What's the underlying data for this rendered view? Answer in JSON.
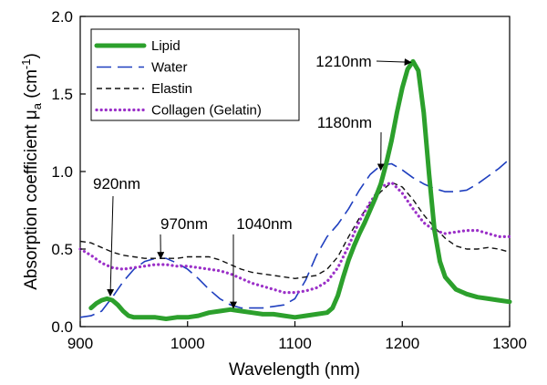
{
  "chart_data": {
    "type": "line",
    "xlabel": "Wavelength (nm)",
    "ylabel_prefix": "Absorption coefficient μ",
    "ylabel_sub": "a",
    "ylabel_suffix": " (cm",
    "ylabel_sup": "-1",
    "ylabel_close": ")",
    "xlim": [
      900,
      1300
    ],
    "ylim": [
      0,
      2.0
    ],
    "xticks": [
      900,
      1000,
      1100,
      1200,
      1300
    ],
    "xtick_labels": [
      "900",
      "1000",
      "1100",
      "1200",
      "1300"
    ],
    "yticks": [
      0,
      0.5,
      1.0,
      1.5,
      2.0
    ],
    "ytick_labels": [
      "0.0",
      "0.5",
      "1.0",
      "1.5",
      "2.0"
    ],
    "grid": false,
    "legend_position": "top-left",
    "series": [
      {
        "name": "Lipid",
        "color": "#2ca02c",
        "style": "solid-thick",
        "x": [
          910,
          915,
          920,
          925,
          930,
          935,
          940,
          945,
          950,
          960,
          970,
          980,
          990,
          1000,
          1010,
          1020,
          1030,
          1040,
          1050,
          1060,
          1070,
          1080,
          1090,
          1100,
          1110,
          1120,
          1130,
          1135,
          1140,
          1145,
          1150,
          1155,
          1160,
          1165,
          1170,
          1175,
          1180,
          1185,
          1190,
          1195,
          1200,
          1205,
          1210,
          1215,
          1220,
          1225,
          1230,
          1235,
          1240,
          1250,
          1260,
          1270,
          1280,
          1290,
          1300
        ],
        "y": [
          0.12,
          0.15,
          0.17,
          0.18,
          0.17,
          0.14,
          0.1,
          0.07,
          0.06,
          0.06,
          0.06,
          0.05,
          0.06,
          0.06,
          0.07,
          0.09,
          0.1,
          0.11,
          0.1,
          0.09,
          0.08,
          0.08,
          0.07,
          0.06,
          0.07,
          0.08,
          0.09,
          0.12,
          0.2,
          0.32,
          0.43,
          0.52,
          0.6,
          0.67,
          0.75,
          0.83,
          0.92,
          1.05,
          1.2,
          1.38,
          1.54,
          1.66,
          1.71,
          1.65,
          1.38,
          0.98,
          0.62,
          0.42,
          0.32,
          0.24,
          0.21,
          0.19,
          0.18,
          0.17,
          0.16
        ]
      },
      {
        "name": "Water",
        "color": "#1f3fbf",
        "style": "long-dash",
        "x": [
          900,
          910,
          920,
          930,
          940,
          950,
          960,
          970,
          980,
          990,
          1000,
          1010,
          1020,
          1030,
          1040,
          1050,
          1060,
          1070,
          1080,
          1090,
          1100,
          1110,
          1120,
          1130,
          1140,
          1150,
          1160,
          1170,
          1180,
          1190,
          1200,
          1210,
          1220,
          1230,
          1240,
          1250,
          1260,
          1270,
          1280,
          1290,
          1300
        ],
        "y": [
          0.06,
          0.07,
          0.1,
          0.19,
          0.29,
          0.37,
          0.42,
          0.44,
          0.44,
          0.41,
          0.37,
          0.31,
          0.24,
          0.18,
          0.14,
          0.12,
          0.12,
          0.12,
          0.13,
          0.14,
          0.18,
          0.3,
          0.46,
          0.58,
          0.66,
          0.76,
          0.88,
          0.98,
          1.04,
          1.05,
          1.01,
          0.96,
          0.92,
          0.89,
          0.87,
          0.87,
          0.88,
          0.92,
          0.97,
          1.02,
          1.08
        ]
      },
      {
        "name": "Elastin",
        "color": "#111111",
        "style": "short-dash",
        "x": [
          900,
          910,
          920,
          930,
          940,
          950,
          960,
          970,
          980,
          990,
          1000,
          1010,
          1020,
          1030,
          1040,
          1050,
          1060,
          1070,
          1080,
          1090,
          1100,
          1110,
          1120,
          1130,
          1140,
          1150,
          1160,
          1170,
          1180,
          1190,
          1200,
          1210,
          1220,
          1230,
          1240,
          1250,
          1260,
          1270,
          1280,
          1290,
          1300
        ],
        "y": [
          0.55,
          0.54,
          0.51,
          0.48,
          0.46,
          0.45,
          0.44,
          0.44,
          0.44,
          0.44,
          0.45,
          0.45,
          0.45,
          0.43,
          0.4,
          0.37,
          0.35,
          0.34,
          0.33,
          0.32,
          0.31,
          0.32,
          0.33,
          0.37,
          0.45,
          0.58,
          0.7,
          0.79,
          0.87,
          0.93,
          0.9,
          0.82,
          0.72,
          0.64,
          0.57,
          0.52,
          0.5,
          0.5,
          0.51,
          0.5,
          0.48
        ]
      },
      {
        "name": "Collagen (Gelatin)",
        "color": "#9b30c8",
        "style": "dotted",
        "x": [
          900,
          910,
          920,
          930,
          940,
          950,
          960,
          970,
          980,
          990,
          1000,
          1010,
          1020,
          1030,
          1040,
          1050,
          1060,
          1070,
          1080,
          1090,
          1100,
          1110,
          1120,
          1130,
          1140,
          1150,
          1160,
          1170,
          1180,
          1190,
          1200,
          1210,
          1220,
          1230,
          1240,
          1250,
          1260,
          1270,
          1280,
          1290,
          1300
        ],
        "y": [
          0.5,
          0.46,
          0.41,
          0.38,
          0.37,
          0.38,
          0.39,
          0.4,
          0.4,
          0.39,
          0.39,
          0.38,
          0.37,
          0.36,
          0.34,
          0.31,
          0.28,
          0.26,
          0.24,
          0.22,
          0.22,
          0.23,
          0.25,
          0.29,
          0.38,
          0.52,
          0.68,
          0.8,
          0.9,
          0.93,
          0.86,
          0.76,
          0.67,
          0.62,
          0.6,
          0.61,
          0.62,
          0.62,
          0.6,
          0.58,
          0.58
        ]
      }
    ],
    "annotations": [
      {
        "text": "920nm",
        "point": [
          928,
          0.18
        ],
        "text_at": [
          1060,
          920
        ]
      },
      {
        "text": "970nm",
        "point": [
          975,
          0.43
        ],
        "text_at": [
          970,
          1.03
        ]
      },
      {
        "text": "1040nm",
        "point": [
          1040,
          0.11
        ],
        "text_at": [
          1040,
          1.03
        ]
      },
      {
        "text": "1180nm",
        "point": [
          1180,
          1.02
        ],
        "text_at": [
          1192,
          1.27
        ]
      },
      {
        "text": "1210nm",
        "point": [
          1205,
          1.71
        ],
        "text_at": [
          1120,
          1.71
        ]
      }
    ]
  }
}
